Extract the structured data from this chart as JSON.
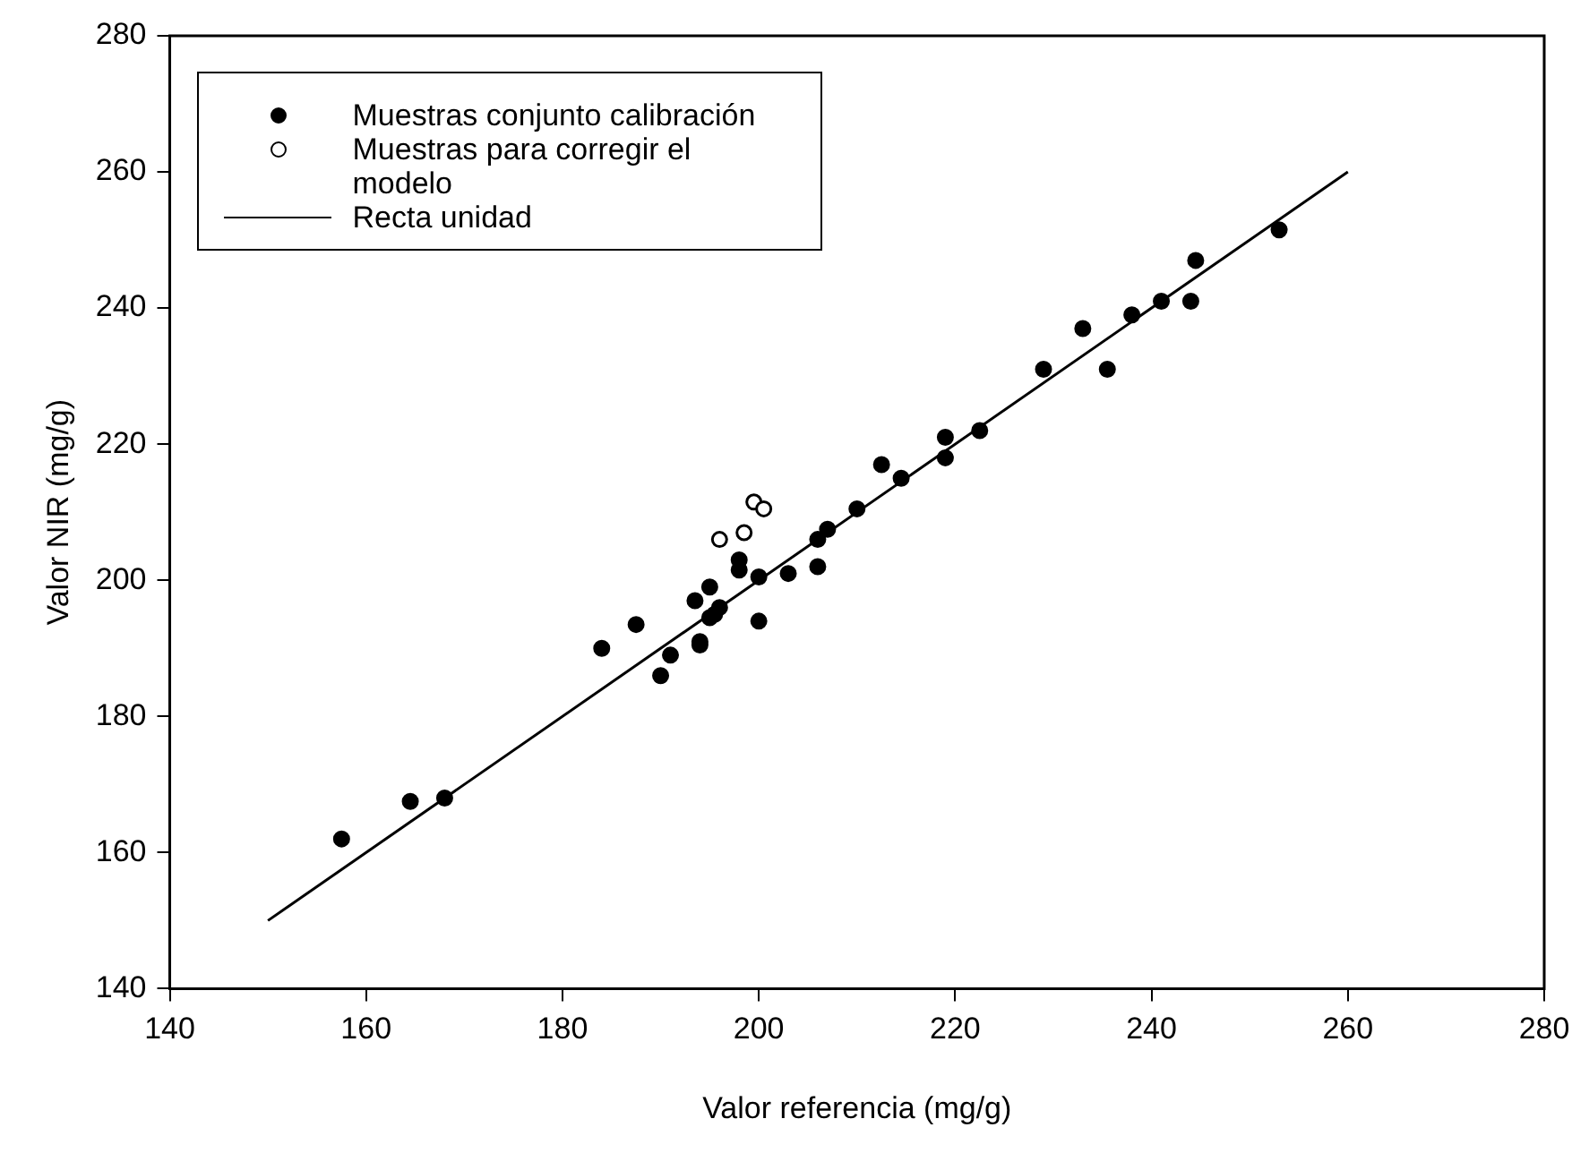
{
  "chart_data": {
    "type": "scatter",
    "xlabel": "Valor referencia (mg/g)",
    "ylabel": "Valor NIR (mg/g)",
    "xlim": [
      140,
      280
    ],
    "xticks": [
      140,
      160,
      180,
      200,
      220,
      240,
      260,
      280
    ],
    "ylim": [
      140,
      280
    ],
    "yticks": [
      140,
      160,
      180,
      200,
      220,
      240,
      260,
      280
    ],
    "legend": "top left",
    "marker": "circle",
    "series": [
      {
        "name": "Muestras conjunto calibración",
        "color": "#000000",
        "x": [
          157.5,
          164.5,
          168,
          184,
          187.5,
          190,
          191,
          193.5,
          194,
          194,
          195,
          195,
          195.5,
          196,
          198,
          198,
          200,
          200,
          203,
          206,
          206,
          207,
          210,
          212.5,
          214.5,
          219,
          219,
          222.5,
          229,
          233,
          235.5,
          238,
          241,
          244,
          244.5,
          253
        ],
        "values": [
          162,
          167.5,
          168,
          190,
          193.5,
          186,
          189,
          197,
          191,
          190.5,
          199,
          194.5,
          195,
          196,
          201.5,
          203,
          200.5,
          194,
          201,
          202,
          206,
          207.5,
          210.5,
          217,
          215,
          218,
          221,
          222,
          231,
          237,
          231,
          239,
          241,
          241,
          247,
          251.5
        ]
      },
      {
        "name": "Muestras para corregir el modelo",
        "color": "#ffffff",
        "x": [
          196,
          198.5,
          199.5,
          200.5
        ],
        "values": [
          206,
          207,
          211.5,
          210.5
        ]
      },
      {
        "name": "Recta unidad",
        "type": "line",
        "color": "#000000",
        "marker": "none",
        "line_style": "solid",
        "x": [
          150,
          260
        ],
        "values": [
          150,
          260
        ]
      }
    ]
  }
}
